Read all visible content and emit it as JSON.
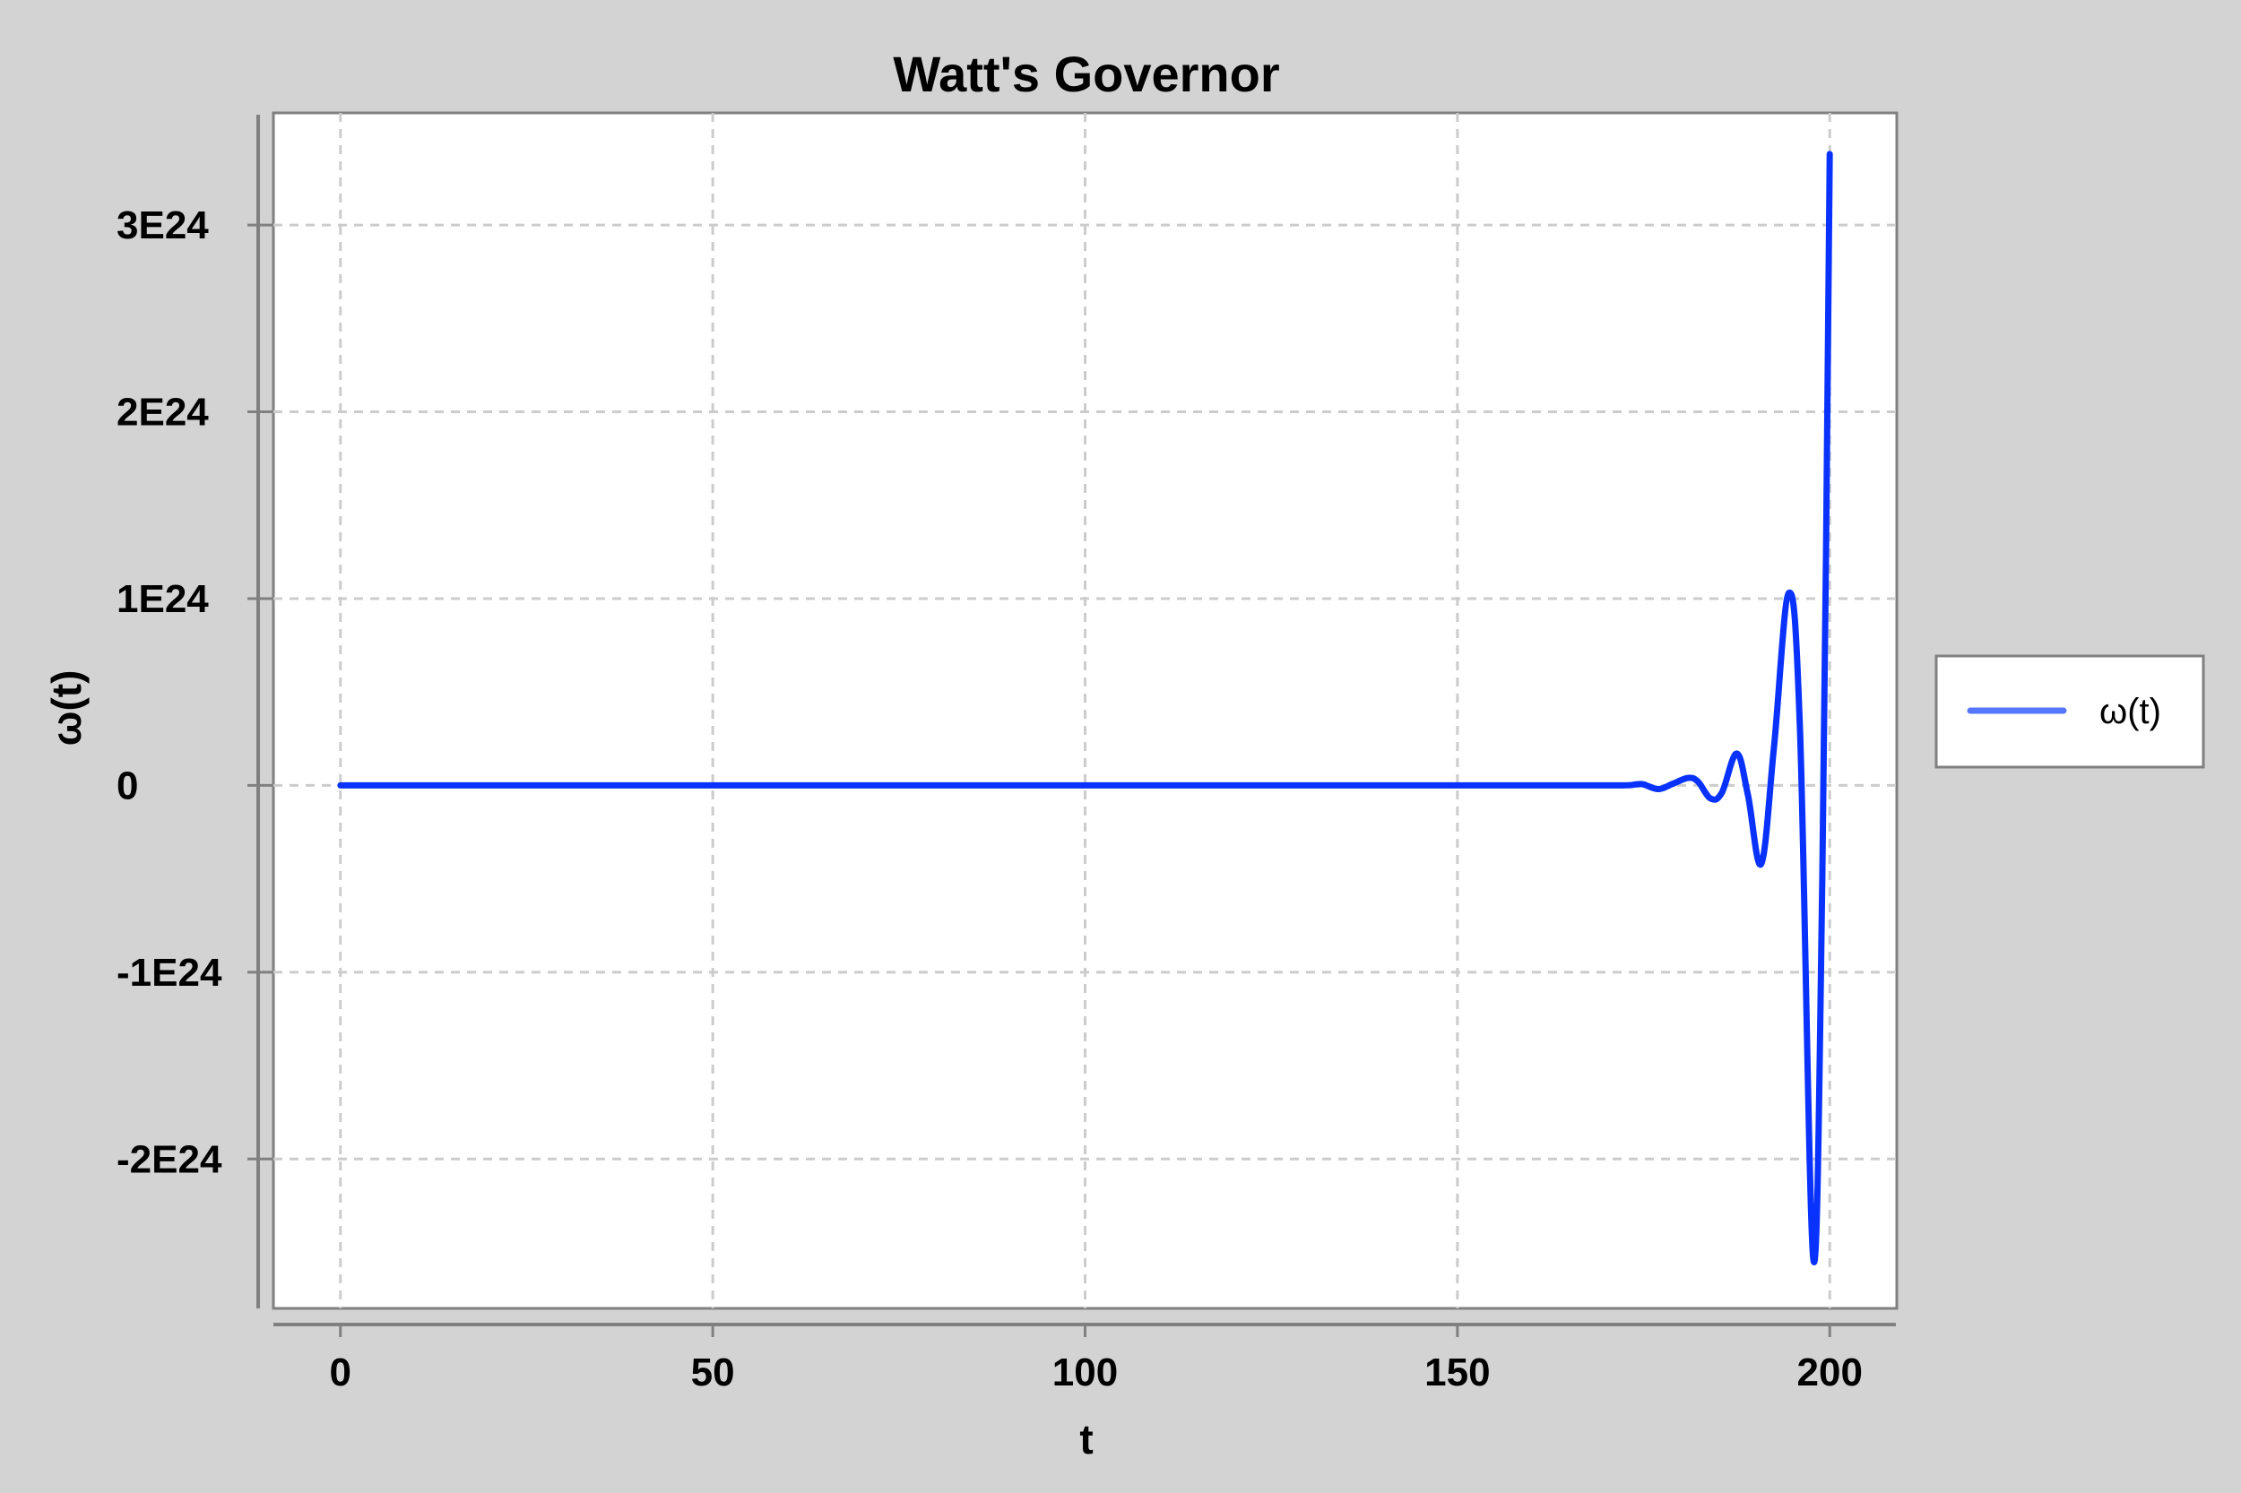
{
  "colors": {
    "background": "#d3d3d3",
    "plot_background": "#ffffff",
    "frame": "#808080",
    "grid": "#cccccc",
    "series": "#0a32ff",
    "legend_line": "#5577ff"
  },
  "chart_data": {
    "type": "line",
    "title": "Watt's Governor",
    "xlabel": "t",
    "ylabel": "ω(t)",
    "xlim": [
      -9,
      209
    ],
    "ylim": [
      -2.8e+24,
      3.6e+24
    ],
    "grid": true,
    "legend_placement": "right",
    "x_ticks": [
      {
        "value": 0,
        "label": "0"
      },
      {
        "value": 50,
        "label": "50"
      },
      {
        "value": 100,
        "label": "100"
      },
      {
        "value": 150,
        "label": "150"
      },
      {
        "value": 200,
        "label": "200"
      }
    ],
    "y_ticks": [
      {
        "value": 3e+24,
        "label": "3E24"
      },
      {
        "value": 2e+24,
        "label": "2E24"
      },
      {
        "value": 1e+24,
        "label": "1E24"
      },
      {
        "value": 0,
        "label": "0"
      },
      {
        "value": -1e+24,
        "label": "-1E24"
      },
      {
        "value": -2e+24,
        "label": "-2E24"
      }
    ],
    "series": [
      {
        "name": "ω(t)",
        "x": [
          0,
          50,
          100,
          150,
          172,
          174,
          175,
          177,
          179,
          181,
          182.3,
          184,
          185.5,
          187.5,
          189,
          190.8,
          192.5,
          194.5,
          196,
          197.8,
          199,
          200
        ],
        "y": [
          0,
          0,
          0,
          0,
          0,
          5e+21,
          5e+21,
          -2e+22,
          1e+22,
          4e+22,
          2e+22,
          -7e+22,
          -4e+22,
          1.7e+23,
          -5e+22,
          -4.2e+23,
          2e+23,
          1.03e+24,
          3e+23,
          -2.54e+24,
          -5e+23,
          3.38e+24
        ]
      }
    ]
  }
}
